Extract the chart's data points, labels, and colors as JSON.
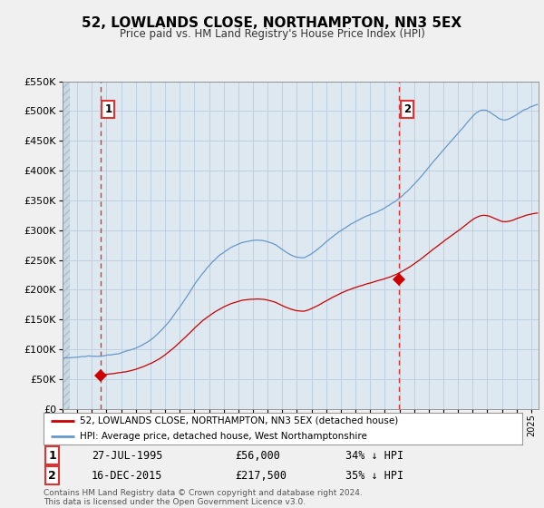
{
  "title": "52, LOWLANDS CLOSE, NORTHAMPTON, NN3 5EX",
  "subtitle": "Price paid vs. HM Land Registry's House Price Index (HPI)",
  "ylim": [
    0,
    550000
  ],
  "yticks": [
    0,
    50000,
    100000,
    150000,
    200000,
    250000,
    300000,
    350000,
    400000,
    450000,
    500000,
    550000
  ],
  "ytick_labels": [
    "£0",
    "£50K",
    "£100K",
    "£150K",
    "£200K",
    "£250K",
    "£300K",
    "£350K",
    "£400K",
    "£450K",
    "£500K",
    "£550K"
  ],
  "xlim_start": 1993.0,
  "xlim_end": 2025.5,
  "purchase1_x": 1995.57,
  "purchase1_y": 56000,
  "purchase1_date": "27-JUL-1995",
  "purchase1_price": "£56,000",
  "purchase1_hpi": "34% ↓ HPI",
  "purchase2_x": 2015.96,
  "purchase2_y": 217500,
  "purchase2_date": "16-DEC-2015",
  "purchase2_price": "£217,500",
  "purchase2_hpi": "35% ↓ HPI",
  "red_line_color": "#cc0000",
  "blue_line_color": "#6699cc",
  "dashed_vline_color": "#dd3333",
  "grid_color": "#bbccdd",
  "bg_color": "#f0f0f0",
  "plot_bg": "#dde8f0",
  "legend_line1": "52, LOWLANDS CLOSE, NORTHAMPTON, NN3 5EX (detached house)",
  "legend_line2": "HPI: Average price, detached house, West Northamptonshire",
  "footer": "Contains HM Land Registry data © Crown copyright and database right 2024.\nThis data is licensed under the Open Government Licence v3.0.",
  "marker_color": "#cc0000",
  "marker_size": 7
}
